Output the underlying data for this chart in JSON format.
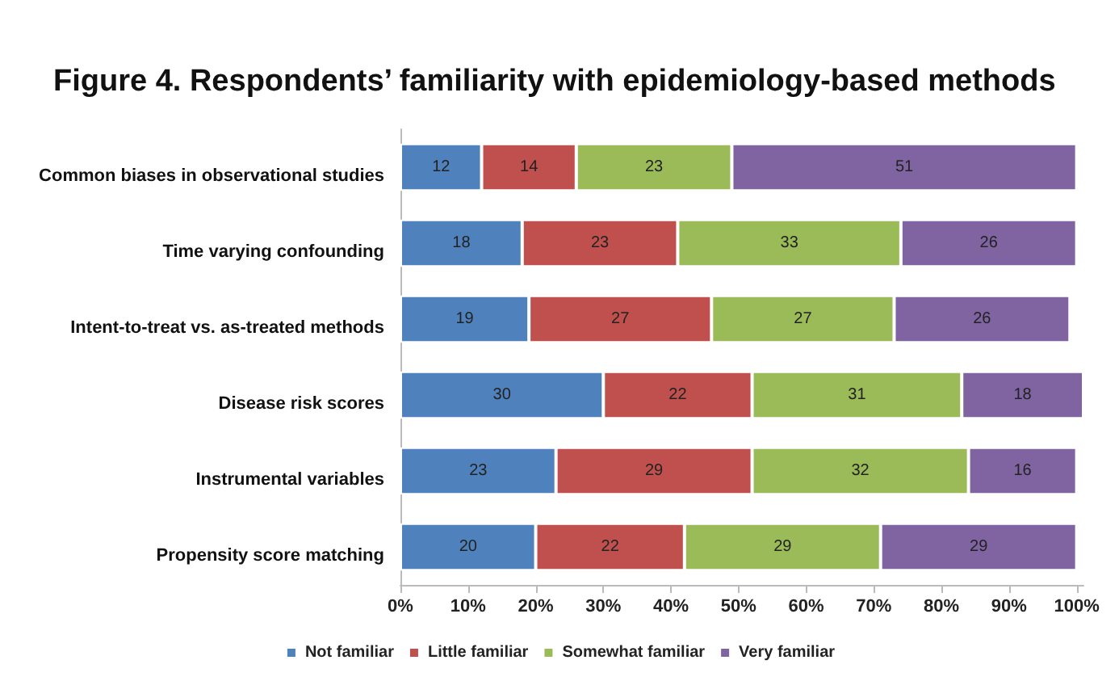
{
  "chart_data": {
    "type": "bar",
    "orientation": "horizontal",
    "stacked": true,
    "title": "Figure 4. Respondents’ familiarity with epidemiology-based methods",
    "categories": [
      "Common biases in observational studies",
      "Time varying confounding",
      "Intent-to-treat vs. as-treated methods",
      "Disease risk scores",
      "Instrumental variables",
      "Propensity score matching"
    ],
    "series": [
      {
        "name": "Not familiar",
        "color": "#4f81bd",
        "values": [
          12,
          18,
          19,
          30,
          23,
          20
        ]
      },
      {
        "name": "Little familiar",
        "color": "#c0504d",
        "values": [
          14,
          23,
          27,
          22,
          29,
          22
        ]
      },
      {
        "name": "Somewhat familiar",
        "color": "#9bbb59",
        "values": [
          23,
          33,
          27,
          31,
          32,
          29
        ]
      },
      {
        "name": "Very familiar",
        "color": "#8064a2",
        "values": [
          51,
          26,
          26,
          18,
          16,
          29
        ]
      }
    ],
    "xlim": [
      0,
      101
    ],
    "xticks": [
      {
        "value": 0,
        "label": "0%"
      },
      {
        "value": 10,
        "label": "10%"
      },
      {
        "value": 20,
        "label": "20%"
      },
      {
        "value": 30,
        "label": "30%"
      },
      {
        "value": 40,
        "label": "40%"
      },
      {
        "value": 50,
        "label": "50%"
      },
      {
        "value": 60,
        "label": "60%"
      },
      {
        "value": 70,
        "label": "70%"
      },
      {
        "value": 80,
        "label": "80%"
      },
      {
        "value": 90,
        "label": "90%"
      },
      {
        "value": 100,
        "label": "100%"
      }
    ],
    "data_labels": true,
    "grid": false,
    "legend": "bottom"
  }
}
